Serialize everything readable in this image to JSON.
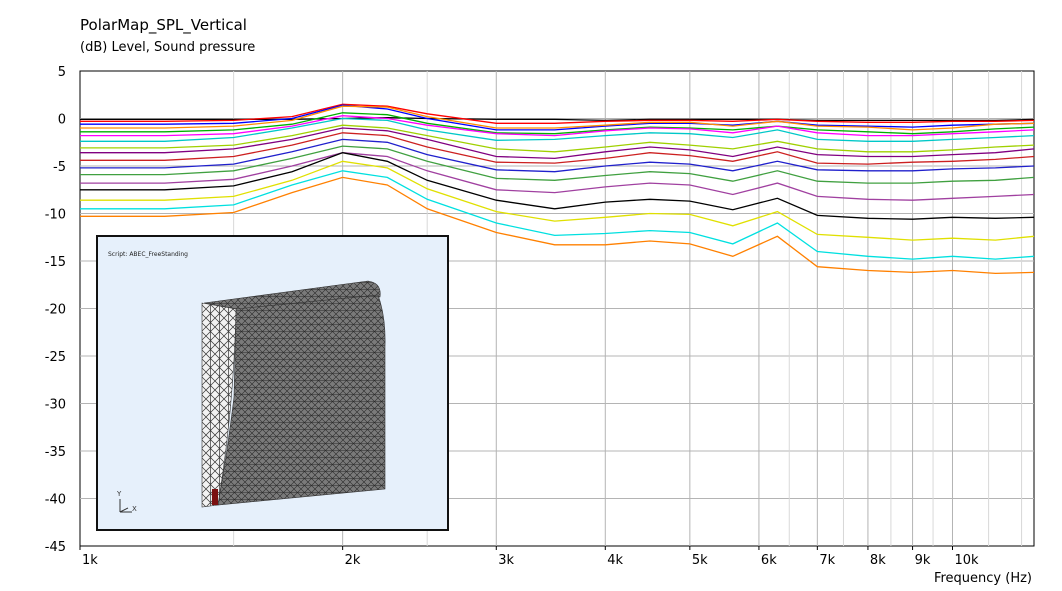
{
  "chart_data": {
    "type": "line",
    "title": "PolarMap_SPL_Vertical",
    "ylabel": "(dB)  Level, Sound pressure",
    "xlabel": "Frequency  (Hz)",
    "x_scale": "log",
    "xlim": [
      1000,
      12400
    ],
    "ylim": [
      -45,
      5
    ],
    "grid": true,
    "x_ticks": [
      1000,
      2000,
      3000,
      4000,
      5000,
      6000,
      7000,
      8000,
      9000,
      10000
    ],
    "x_tick_labels": [
      "1k",
      "2k",
      "3k",
      "4k",
      "5k",
      "6k",
      "7k",
      "8k",
      "9k",
      "10k"
    ],
    "y_ticks": [
      5,
      0,
      -5,
      -10,
      -15,
      -20,
      -25,
      -30,
      -35,
      -40,
      -45
    ],
    "x": [
      1000,
      1250,
      1500,
      1750,
      2000,
      2250,
      2500,
      3000,
      3500,
      4000,
      4500,
      5000,
      5600,
      6300,
      7000,
      8000,
      9000,
      10000,
      11200,
      12400
    ],
    "series": [
      {
        "color": "#000000",
        "values": [
          -0.1,
          -0.1,
          -0.1,
          -0.1,
          0.0,
          0.1,
          0.0,
          -0.1,
          -0.1,
          -0.2,
          -0.1,
          -0.1,
          -0.1,
          -0.1,
          -0.2,
          -0.2,
          -0.2,
          -0.2,
          -0.2,
          -0.1
        ]
      },
      {
        "color": "#ff0000",
        "values": [
          -0.3,
          -0.3,
          -0.2,
          0.2,
          1.5,
          1.3,
          0.5,
          -0.5,
          -0.5,
          -0.3,
          -0.2,
          -0.2,
          -0.3,
          -0.1,
          -0.3,
          -0.4,
          -0.4,
          -0.3,
          -0.3,
          -0.2
        ]
      },
      {
        "color": "#0000ff",
        "values": [
          -0.6,
          -0.6,
          -0.5,
          0.0,
          1.4,
          1.0,
          0.0,
          -1.2,
          -1.2,
          -0.8,
          -0.5,
          -0.5,
          -0.7,
          -0.3,
          -0.7,
          -0.8,
          -0.9,
          -0.7,
          -0.6,
          -0.5
        ]
      },
      {
        "color": "#ff8c00",
        "values": [
          -1.0,
          -1.0,
          -0.8,
          -0.2,
          1.3,
          1.2,
          0.2,
          -1.0,
          -1.0,
          -0.7,
          -0.4,
          -0.4,
          -0.8,
          -0.3,
          -0.8,
          -0.9,
          -1.2,
          -1.0,
          -0.6,
          -0.5
        ]
      },
      {
        "color": "#00b000",
        "values": [
          -1.4,
          -1.4,
          -1.2,
          -0.6,
          0.6,
          0.4,
          -0.5,
          -1.5,
          -1.6,
          -1.2,
          -0.9,
          -1.0,
          -1.2,
          -0.8,
          -1.2,
          -1.4,
          -1.6,
          -1.4,
          -1.1,
          -0.9
        ]
      },
      {
        "color": "#ff00ff",
        "values": [
          -1.8,
          -1.8,
          -1.6,
          -0.8,
          0.3,
          0.0,
          -0.7,
          -1.6,
          -1.8,
          -1.3,
          -1.0,
          -1.1,
          -1.5,
          -0.8,
          -1.5,
          -1.8,
          -1.8,
          -1.6,
          -1.4,
          -1.2
        ]
      },
      {
        "color": "#00c8c8",
        "values": [
          -2.4,
          -2.4,
          -2.0,
          -1.0,
          0.0,
          -0.2,
          -1.2,
          -2.3,
          -2.2,
          -1.8,
          -1.5,
          -1.6,
          -2.0,
          -1.2,
          -2.2,
          -2.4,
          -2.4,
          -2.2,
          -2.0,
          -1.8
        ]
      },
      {
        "color": "#a0d000",
        "values": [
          -3.1,
          -3.1,
          -2.8,
          -1.8,
          -0.7,
          -1.0,
          -1.8,
          -3.2,
          -3.5,
          -3.0,
          -2.5,
          -2.8,
          -3.2,
          -2.4,
          -3.2,
          -3.5,
          -3.5,
          -3.3,
          -3.0,
          -2.8
        ]
      },
      {
        "color": "#800080",
        "values": [
          -3.6,
          -3.6,
          -3.2,
          -2.2,
          -1.0,
          -1.3,
          -2.2,
          -4.0,
          -4.2,
          -3.5,
          -3.0,
          -3.3,
          -4.0,
          -3.0,
          -3.8,
          -4.0,
          -4.0,
          -3.8,
          -3.6,
          -3.2
        ]
      },
      {
        "color": "#cc2020",
        "values": [
          -4.4,
          -4.4,
          -4.0,
          -2.8,
          -1.5,
          -1.8,
          -3.0,
          -4.6,
          -4.7,
          -4.2,
          -3.6,
          -3.9,
          -4.5,
          -3.5,
          -4.7,
          -4.8,
          -4.6,
          -4.5,
          -4.3,
          -4.0
        ]
      },
      {
        "color": "#2020cc",
        "values": [
          -5.2,
          -5.2,
          -4.8,
          -3.5,
          -2.2,
          -2.5,
          -3.8,
          -5.4,
          -5.6,
          -5.0,
          -4.6,
          -4.8,
          -5.5,
          -4.5,
          -5.4,
          -5.5,
          -5.5,
          -5.3,
          -5.2,
          -5.0
        ]
      },
      {
        "color": "#40a040",
        "values": [
          -5.9,
          -5.9,
          -5.5,
          -4.2,
          -2.9,
          -3.2,
          -4.5,
          -6.3,
          -6.5,
          -6.0,
          -5.6,
          -5.8,
          -6.6,
          -5.5,
          -6.6,
          -6.8,
          -6.8,
          -6.6,
          -6.5,
          -6.2
        ]
      },
      {
        "color": "#a040a0",
        "values": [
          -6.8,
          -6.8,
          -6.4,
          -5.0,
          -3.6,
          -4.0,
          -5.5,
          -7.5,
          -7.8,
          -7.2,
          -6.8,
          -7.0,
          -8.0,
          -6.8,
          -8.2,
          -8.5,
          -8.6,
          -8.4,
          -8.2,
          -8.0
        ]
      },
      {
        "color": "#000000",
        "values": [
          -7.5,
          -7.5,
          -7.1,
          -5.6,
          -3.6,
          -4.5,
          -6.5,
          -8.6,
          -9.5,
          -8.8,
          -8.5,
          -8.7,
          -9.6,
          -8.4,
          -10.2,
          -10.5,
          -10.6,
          -10.4,
          -10.5,
          -10.4
        ]
      },
      {
        "color": "#e0e000",
        "values": [
          -8.6,
          -8.6,
          -8.2,
          -6.5,
          -4.5,
          -5.2,
          -7.4,
          -9.8,
          -10.8,
          -10.4,
          -10.0,
          -10.1,
          -11.3,
          -9.8,
          -12.2,
          -12.5,
          -12.8,
          -12.6,
          -12.8,
          -12.4
        ]
      },
      {
        "color": "#00e0e0",
        "values": [
          -9.5,
          -9.5,
          -9.1,
          -7.0,
          -5.5,
          -6.2,
          -8.5,
          -11.0,
          -12.3,
          -12.1,
          -11.8,
          -12.0,
          -13.2,
          -11.0,
          -14.0,
          -14.5,
          -14.8,
          -14.5,
          -14.8,
          -14.5
        ]
      },
      {
        "color": "#ff8000",
        "values": [
          -10.3,
          -10.3,
          -9.9,
          -7.8,
          -6.2,
          -7.0,
          -9.5,
          -12.0,
          -13.3,
          -13.3,
          -12.9,
          -13.2,
          -14.5,
          -12.4,
          -15.6,
          -16.0,
          -16.2,
          -16.0,
          -16.3,
          -16.2
        ]
      }
    ]
  },
  "inset": {
    "script_label": "Script:     ABEC_FreeStanding",
    "axis_y": "Y",
    "axis_x": "X"
  }
}
